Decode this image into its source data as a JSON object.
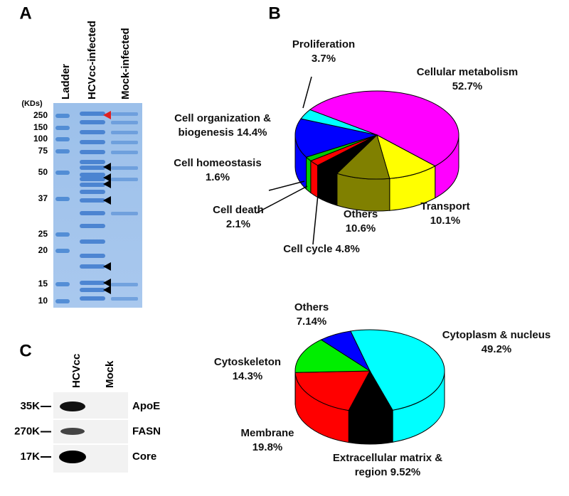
{
  "panels": {
    "a": "A",
    "b": "B",
    "c": "C"
  },
  "gel": {
    "lanes": [
      "Ladder",
      "HCVcc-infected",
      "Mock-infected"
    ],
    "unit": "(KDs)",
    "markers": [
      250,
      150,
      100,
      75,
      50,
      37,
      25,
      20,
      15,
      10
    ]
  },
  "blot": {
    "lanes": [
      "HCVcc",
      "Mock"
    ],
    "rows": [
      {
        "size": "35K",
        "protein": "ApoE"
      },
      {
        "size": "270K",
        "protein": "FASN"
      },
      {
        "size": "17K",
        "protein": "Core"
      }
    ]
  },
  "chart_data": [
    {
      "type": "pie",
      "categories": [
        "Cellular metabolism",
        "Transport",
        "Others",
        "Cell cycle",
        "Cell death",
        "Cell homeostasis",
        "Cell organization & biogenesis",
        "Proliferation"
      ],
      "values": [
        52.7,
        10.1,
        10.6,
        4.8,
        2.1,
        1.6,
        14.4,
        3.7
      ],
      "value_labels": [
        "52.7%",
        "10.1%",
        "10.6%",
        "4.8%",
        "2.1%",
        "1.6%",
        "14.4%",
        "3.7%"
      ],
      "colors": [
        "#ff00ff",
        "#ffff00",
        "#808000",
        "#000000",
        "#ff0000",
        "#00cc00",
        "#0000ff",
        "#00ffff"
      ]
    },
    {
      "type": "pie",
      "categories": [
        "Cytoplasm & nucleus",
        "Extracellular matrix & region",
        "Membrane",
        "Cytoskeleton",
        "Others"
      ],
      "values": [
        49.2,
        9.52,
        19.8,
        14.3,
        7.14
      ],
      "value_labels": [
        "49.2%",
        "9.52%",
        "19.8%",
        "14.3%",
        "7.14%"
      ],
      "colors": [
        "#00ffff",
        "#000000",
        "#ff0000",
        "#00ee00",
        "#0000ff"
      ]
    }
  ]
}
